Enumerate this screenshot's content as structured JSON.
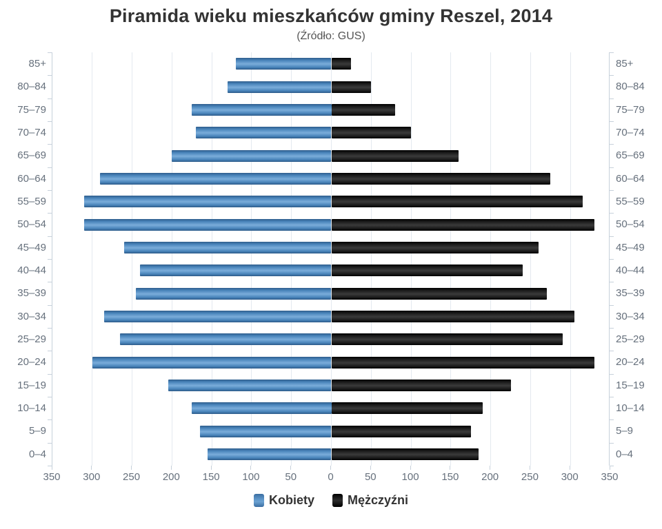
{
  "title": "Piramida wieku mieszkańców gminy Reszel, 2014",
  "subtitle": "(Źródło: GUS)",
  "colors": {
    "women_bar": "#4a86c2",
    "men_bar": "#1a1a1a",
    "gridline": "#e3e9ef",
    "axis_line": "#c6d0da",
    "axis_label": "#66707c",
    "title_text": "#333333"
  },
  "chart_data": {
    "type": "bar",
    "variant": "population-pyramid",
    "title": "Piramida wieku mieszkańców gminy Reszel, 2014",
    "subtitle": "(Źródło: GUS)",
    "categories": [
      "85+",
      "80–84",
      "75–79",
      "70–74",
      "65–69",
      "60–64",
      "55–59",
      "50–54",
      "45–49",
      "40–44",
      "35–39",
      "30–34",
      "25–29",
      "20–24",
      "15–19",
      "10–14",
      "5–9",
      "0–4"
    ],
    "series": [
      {
        "name": "Kobiety",
        "side": "left",
        "color": "#4a86c2",
        "values": [
          120,
          130,
          175,
          170,
          200,
          290,
          310,
          310,
          260,
          240,
          245,
          285,
          265,
          300,
          205,
          175,
          165,
          155
        ]
      },
      {
        "name": "Mężczyźni",
        "side": "right",
        "color": "#1a1a1a",
        "values": [
          25,
          50,
          80,
          100,
          160,
          275,
          315,
          330,
          260,
          240,
          270,
          305,
          290,
          330,
          225,
          190,
          175,
          185
        ]
      }
    ],
    "x_ticks": [
      0,
      50,
      100,
      150,
      200,
      250,
      300,
      350
    ],
    "xlim": [
      0,
      350
    ],
    "xlabel": "",
    "ylabel": "",
    "grid": true,
    "legend_position": "bottom"
  }
}
